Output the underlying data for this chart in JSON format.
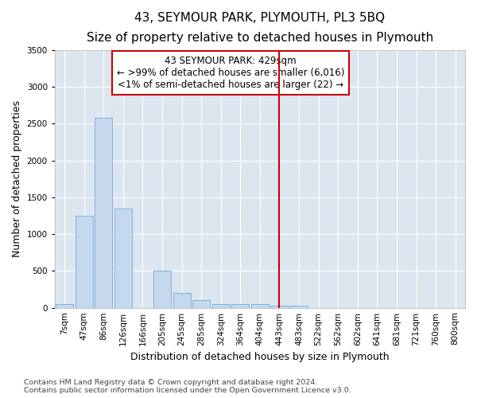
{
  "title": "43, SEYMOUR PARK, PLYMOUTH, PL3 5BQ",
  "subtitle": "Size of property relative to detached houses in Plymouth",
  "xlabel": "Distribution of detached houses by size in Plymouth",
  "ylabel": "Number of detached properties",
  "categories": [
    "7sqm",
    "47sqm",
    "86sqm",
    "126sqm",
    "166sqm",
    "205sqm",
    "245sqm",
    "285sqm",
    "324sqm",
    "364sqm",
    "404sqm",
    "443sqm",
    "483sqm",
    "522sqm",
    "562sqm",
    "602sqm",
    "641sqm",
    "681sqm",
    "721sqm",
    "760sqm",
    "800sqm"
  ],
  "bar_values": [
    50,
    1250,
    2580,
    1350,
    0,
    500,
    200,
    100,
    50,
    50,
    50,
    30,
    30,
    0,
    0,
    0,
    0,
    0,
    0,
    0,
    0
  ],
  "bar_color": "#c5d8ee",
  "bar_edge_color": "#7fb3d9",
  "background_color": "#dce6f0",
  "grid_color": "#ffffff",
  "red_line_index": 11,
  "red_line_color": "#cc0000",
  "annotation_text": "43 SEYMOUR PARK: 429sqm\n← >99% of detached houses are smaller (6,016)\n<1% of semi-detached houses are larger (22) →",
  "annotation_box_edge_color": "#cc0000",
  "annotation_box_bg": "#ffffff",
  "ylim": [
    0,
    3500
  ],
  "yticks": [
    0,
    500,
    1000,
    1500,
    2000,
    2500,
    3000,
    3500
  ],
  "footer_line1": "Contains HM Land Registry data © Crown copyright and database right 2024.",
  "footer_line2": "Contains public sector information licensed under the Open Government Licence v3.0.",
  "title_fontsize": 11,
  "subtitle_fontsize": 9.5,
  "annotation_fontsize": 8.5,
  "axis_label_fontsize": 9,
  "tick_fontsize": 7.5,
  "footer_fontsize": 6.8
}
